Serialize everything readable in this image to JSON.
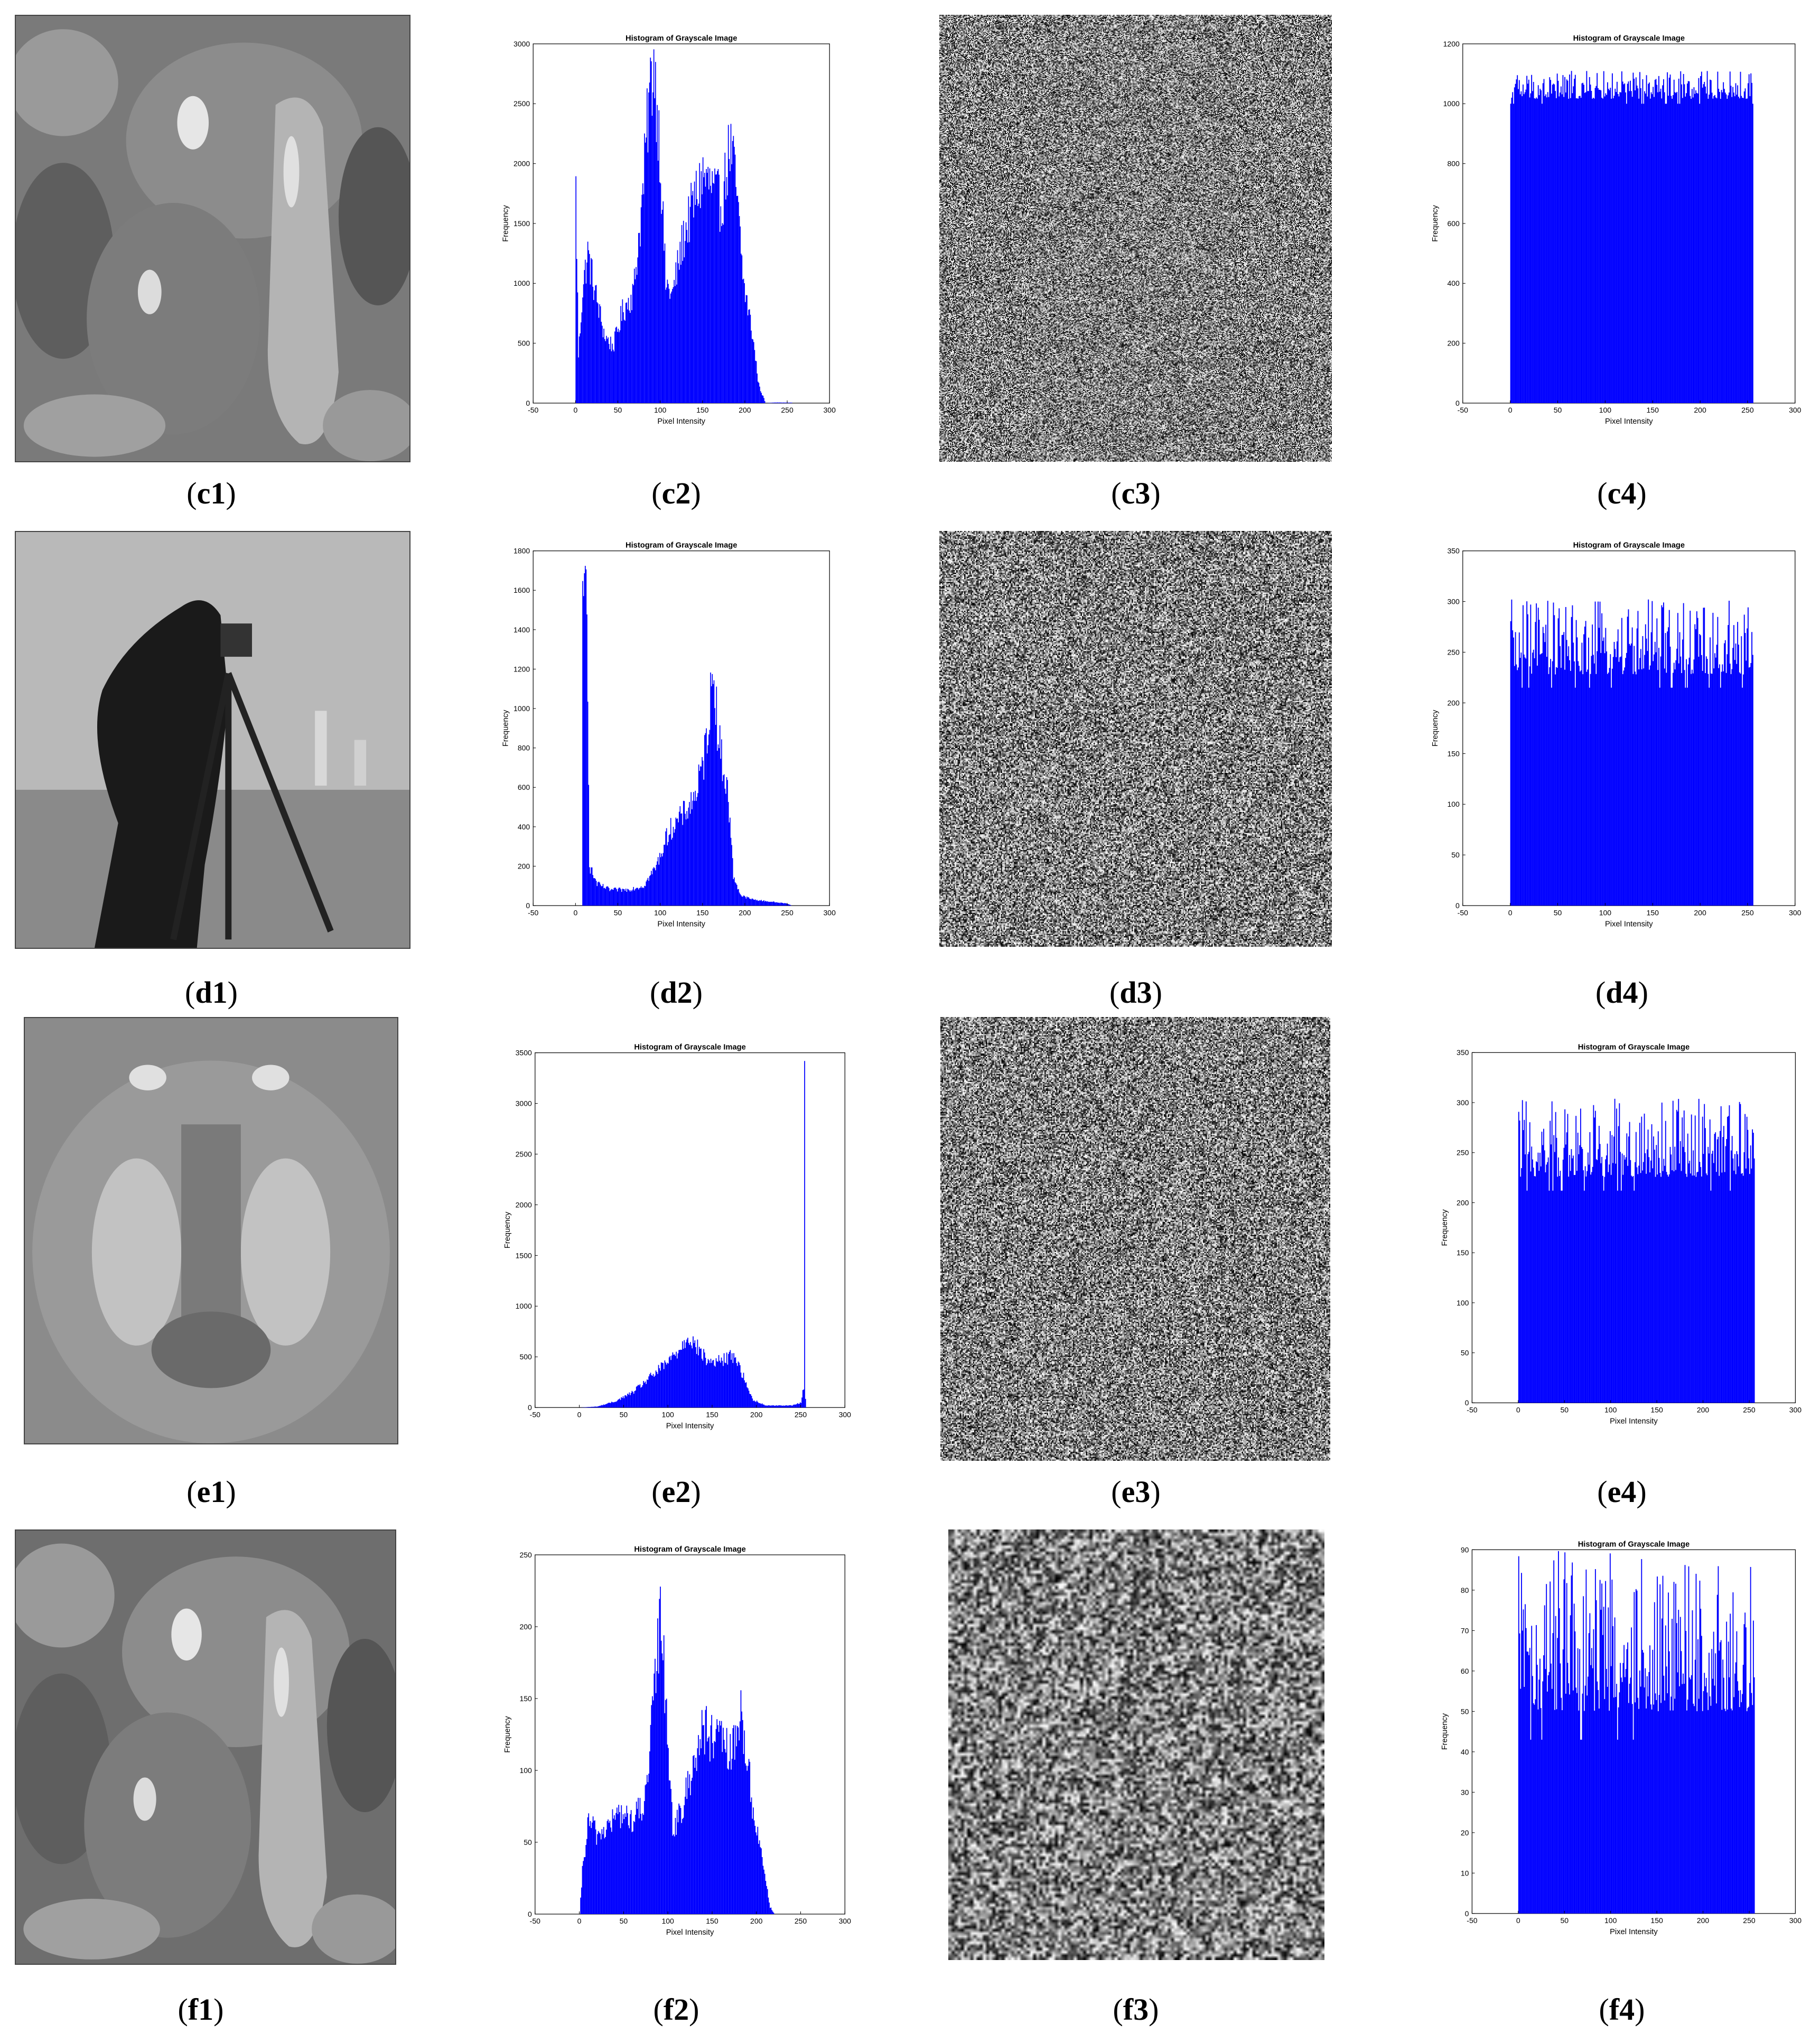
{
  "colors": {
    "bar": "#0000ff",
    "axis": "#000000"
  },
  "captions": {
    "c1": "c1",
    "c2": "c2",
    "c3": "c3",
    "c4": "c4",
    "d1": "d1",
    "d2": "d2",
    "d3": "d3",
    "d4": "d4",
    "e1": "e1",
    "e2": "e2",
    "e3": "e3",
    "e4": "e4",
    "f1": "f1",
    "f2": "f2",
    "f3": "f3",
    "f4": "f4"
  },
  "chart_data": [
    {
      "id": "c2",
      "type": "bar",
      "title": "Histogram of Grayscale Image",
      "xlabel": "Pixel Intensity",
      "ylabel": "Frequency",
      "xlim": [
        -50,
        300
      ],
      "ylim": [
        0,
        3000
      ],
      "xticks": [
        -50,
        0,
        50,
        100,
        150,
        200,
        250,
        300
      ],
      "yticks": [
        0,
        500,
        1000,
        1500,
        2000,
        2500,
        3000
      ],
      "profile": [
        [
          0,
          1780
        ],
        [
          3,
          400
        ],
        [
          8,
          950
        ],
        [
          14,
          1250
        ],
        [
          22,
          950
        ],
        [
          34,
          560
        ],
        [
          44,
          470
        ],
        [
          55,
          760
        ],
        [
          68,
          930
        ],
        [
          78,
          1650
        ],
        [
          86,
          2500
        ],
        [
          92,
          2870
        ],
        [
          99,
          2150
        ],
        [
          106,
          1000
        ],
        [
          114,
          900
        ],
        [
          126,
          1350
        ],
        [
          138,
          1650
        ],
        [
          150,
          1900
        ],
        [
          160,
          1800
        ],
        [
          172,
          1650
        ],
        [
          182,
          2150
        ],
        [
          188,
          1900
        ],
        [
          198,
          1000
        ],
        [
          208,
          600
        ],
        [
          216,
          150
        ],
        [
          224,
          0
        ],
        [
          235,
          5
        ],
        [
          300,
          0
        ]
      ]
    },
    {
      "id": "c4",
      "type": "bar",
      "title": "Histogram of Grayscale Image",
      "xlabel": "Pixel Intensity",
      "ylabel": "Frequency",
      "xlim": [
        -50,
        300
      ],
      "ylim": [
        0,
        1200
      ],
      "xticks": [
        -50,
        0,
        50,
        100,
        150,
        200,
        250,
        300
      ],
      "yticks": [
        0,
        200,
        400,
        600,
        800,
        1000,
        1200
      ],
      "profile": [
        [
          0,
          1040
        ],
        [
          255,
          1040
        ]
      ],
      "spread": [
        1000,
        1110
      ]
    },
    {
      "id": "d2",
      "type": "bar",
      "title": "Histogram of Grayscale Image",
      "xlabel": "Pixel Intensity",
      "ylabel": "Frequency",
      "xlim": [
        -50,
        300
      ],
      "ylim": [
        0,
        1800
      ],
      "xticks": [
        -50,
        0,
        50,
        100,
        150,
        200,
        250,
        300
      ],
      "yticks": [
        0,
        200,
        400,
        600,
        800,
        1000,
        1200,
        1400,
        1600,
        1800
      ],
      "profile": [
        [
          7,
          0
        ],
        [
          8,
          1450
        ],
        [
          11,
          1650
        ],
        [
          13,
          1690
        ],
        [
          16,
          200
        ],
        [
          25,
          110
        ],
        [
          40,
          80
        ],
        [
          60,
          80
        ],
        [
          80,
          100
        ],
        [
          95,
          200
        ],
        [
          110,
          380
        ],
        [
          125,
          450
        ],
        [
          140,
          550
        ],
        [
          150,
          700
        ],
        [
          158,
          1000
        ],
        [
          163,
          1220
        ],
        [
          168,
          850
        ],
        [
          174,
          700
        ],
        [
          180,
          550
        ],
        [
          186,
          150
        ],
        [
          195,
          50
        ],
        [
          210,
          30
        ],
        [
          230,
          20
        ],
        [
          250,
          10
        ],
        [
          255,
          0
        ]
      ]
    },
    {
      "id": "d4",
      "type": "bar",
      "title": "Histogram of Grayscale Image",
      "xlabel": "Pixel Intensity",
      "ylabel": "Frequency",
      "xlim": [
        -50,
        300
      ],
      "ylim": [
        0,
        350
      ],
      "xticks": [
        -50,
        0,
        50,
        100,
        150,
        200,
        250,
        300
      ],
      "yticks": [
        0,
        50,
        100,
        150,
        200,
        250,
        300,
        350
      ],
      "profile": [
        [
          0,
          258
        ],
        [
          255,
          258
        ]
      ],
      "spread": [
        215,
        302
      ]
    },
    {
      "id": "e2",
      "type": "bar",
      "title": "Histogram of Grayscale Image",
      "xlabel": "Pixel Intensity",
      "ylabel": "Frequency",
      "xlim": [
        -50,
        300
      ],
      "ylim": [
        0,
        3500
      ],
      "xticks": [
        -50,
        0,
        50,
        100,
        150,
        200,
        250,
        300
      ],
      "yticks": [
        0,
        500,
        1000,
        1500,
        2000,
        2500,
        3000,
        3500
      ],
      "profile": [
        [
          0,
          0
        ],
        [
          20,
          10
        ],
        [
          40,
          60
        ],
        [
          60,
          150
        ],
        [
          80,
          300
        ],
        [
          100,
          450
        ],
        [
          115,
          600
        ],
        [
          122,
          720
        ],
        [
          130,
          620
        ],
        [
          145,
          450
        ],
        [
          160,
          460
        ],
        [
          175,
          520
        ],
        [
          185,
          300
        ],
        [
          195,
          80
        ],
        [
          210,
          20
        ],
        [
          240,
          20
        ],
        [
          250,
          50
        ],
        [
          253,
          200
        ],
        [
          254,
          3250
        ],
        [
          255,
          100
        ]
      ]
    },
    {
      "id": "e4",
      "type": "bar",
      "title": "Histogram of Grayscale Image",
      "xlabel": "Pixel Intensity",
      "ylabel": "Frequency",
      "xlim": [
        -50,
        300
      ],
      "ylim": [
        0,
        350
      ],
      "xticks": [
        -50,
        0,
        50,
        100,
        150,
        200,
        250,
        300
      ],
      "yticks": [
        0,
        50,
        100,
        150,
        200,
        250,
        300,
        350
      ],
      "profile": [
        [
          0,
          255
        ],
        [
          255,
          255
        ]
      ],
      "spread": [
        212,
        304
      ]
    },
    {
      "id": "f2",
      "type": "bar",
      "title": "Histogram of Grayscale Image",
      "xlabel": "Pixel Intensity",
      "ylabel": "Frequency",
      "xlim": [
        -50,
        300
      ],
      "ylim": [
        0,
        250
      ],
      "xticks": [
        -50,
        0,
        50,
        100,
        150,
        200,
        250,
        300
      ],
      "yticks": [
        0,
        50,
        100,
        150,
        200,
        250
      ],
      "profile": [
        [
          0,
          0
        ],
        [
          3,
          30
        ],
        [
          10,
          65
        ],
        [
          20,
          55
        ],
        [
          30,
          60
        ],
        [
          45,
          70
        ],
        [
          60,
          65
        ],
        [
          75,
          80
        ],
        [
          85,
          160
        ],
        [
          92,
          212
        ],
        [
          98,
          140
        ],
        [
          105,
          60
        ],
        [
          115,
          70
        ],
        [
          128,
          105
        ],
        [
          140,
          130
        ],
        [
          150,
          120
        ],
        [
          160,
          120
        ],
        [
          172,
          110
        ],
        [
          182,
          140
        ],
        [
          188,
          115
        ],
        [
          196,
          70
        ],
        [
          206,
          40
        ],
        [
          215,
          5
        ],
        [
          220,
          0
        ],
        [
          255,
          0
        ]
      ]
    },
    {
      "id": "f4",
      "type": "bar",
      "title": "Histogram of Grayscale Image",
      "xlabel": "Pixel Intensity",
      "ylabel": "Frequency",
      "xlim": [
        -50,
        300
      ],
      "ylim": [
        0,
        90
      ],
      "xticks": [
        -50,
        0,
        50,
        100,
        150,
        200,
        250,
        300
      ],
      "yticks": [
        0,
        10,
        20,
        30,
        40,
        50,
        60,
        70,
        80,
        90
      ],
      "profile": [
        [
          0,
          62
        ],
        [
          255,
          62
        ]
      ],
      "spread": [
        43,
        90
      ]
    }
  ]
}
